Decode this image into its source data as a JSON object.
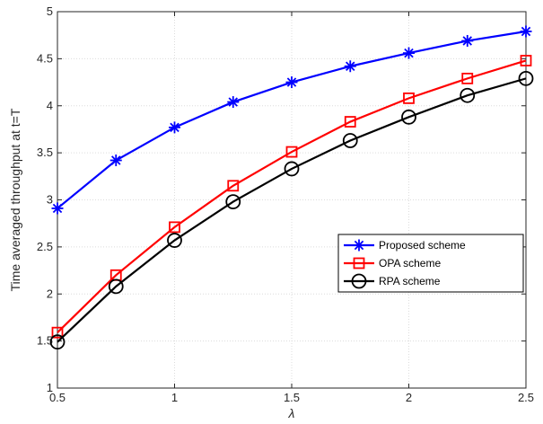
{
  "chart_data": {
    "type": "line",
    "title": "",
    "xlabel": "λ",
    "ylabel": "Time averaged throughput at t=T",
    "xlim": [
      0.5,
      2.5
    ],
    "ylim": [
      1,
      5
    ],
    "xticks": [
      "0.5",
      "1",
      "1.5",
      "2",
      "2.5"
    ],
    "yticks": [
      "1",
      "1.5",
      "2",
      "2.5",
      "3",
      "3.5",
      "4",
      "4.5",
      "5"
    ],
    "grid": true,
    "legend_position": "lower-right",
    "x": [
      0.5,
      0.75,
      1.0,
      1.25,
      1.5,
      1.75,
      2.0,
      2.25,
      2.5
    ],
    "series": [
      {
        "name": "Proposed scheme",
        "color": "#0000ff",
        "marker": "asterisk",
        "values": [
          2.91,
          3.42,
          3.77,
          4.04,
          4.25,
          4.42,
          4.56,
          4.69,
          4.79
        ]
      },
      {
        "name": "OPA scheme",
        "color": "#ff0000",
        "marker": "square",
        "values": [
          1.59,
          2.2,
          2.71,
          3.15,
          3.51,
          3.83,
          4.08,
          4.29,
          4.48
        ]
      },
      {
        "name": "RPA scheme",
        "color": "#000000",
        "marker": "circle",
        "values": [
          1.49,
          2.08,
          2.57,
          2.98,
          3.33,
          3.63,
          3.88,
          4.11,
          4.29
        ]
      }
    ]
  }
}
